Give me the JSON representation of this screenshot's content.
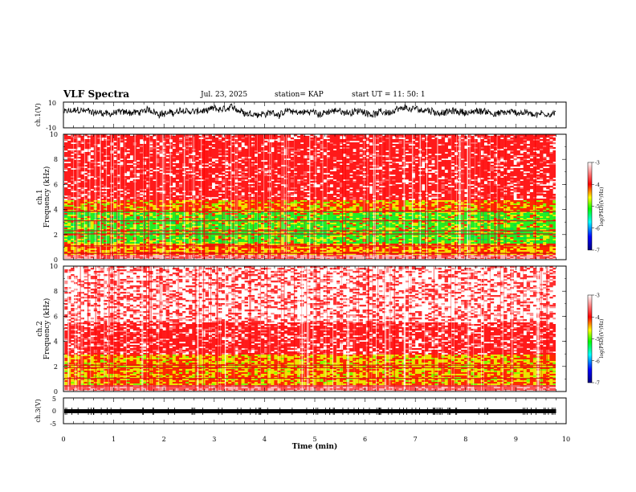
{
  "header": {
    "title": "VLF Spectra",
    "date": "Jul. 23, 2025",
    "station": "station= KAP",
    "start": "start  UT  =   11: 50: 1"
  },
  "chart_data": [
    {
      "type": "line",
      "name": "ch1-waveform",
      "ylabel": "ch.1(V)",
      "ylim": [
        -10,
        10
      ],
      "y_ticklabels": [
        "10",
        "-10"
      ],
      "xlim": [
        0,
        10
      ],
      "data_end_min": 9.8,
      "baseline_v": 2.2,
      "noise_amp_v": 5
    },
    {
      "type": "heatmap",
      "name": "ch1-spectrogram",
      "ylabel": "ch.1\nFrequency (kHz)",
      "ylim": [
        0,
        10
      ],
      "y_ticks": [
        0,
        2,
        4,
        6,
        8,
        10
      ],
      "xlim": [
        0,
        10
      ],
      "data_end_min": 9.8,
      "colorbar": {
        "label": "log(PSD)(V²/Hz)",
        "range": [
          -7,
          -3
        ],
        "ticks": [
          "-3",
          "-4",
          "-5",
          "-6",
          "-7"
        ],
        "colors": [
          "#000080",
          "#0000ff",
          "#00ffff",
          "#00ff00",
          "#ffff00",
          "#ff0000",
          "#ffffff"
        ]
      }
    },
    {
      "type": "heatmap",
      "name": "ch2-spectrogram",
      "ylabel": "ch.2\nFrequency (kHz)",
      "ylim": [
        0,
        10
      ],
      "y_ticks": [
        0,
        2,
        4,
        6,
        8,
        10
      ],
      "xlim": [
        0,
        10
      ],
      "data_end_min": 9.8,
      "colorbar": {
        "label": "log(PSD)(V²/Hz)",
        "range": [
          -7,
          -3
        ],
        "ticks": [
          "-3",
          "-4",
          "-5",
          "-6",
          "-7"
        ],
        "colors": [
          "#000080",
          "#0000ff",
          "#00ffff",
          "#00ff00",
          "#ffff00",
          "#ff0000",
          "#ffffff"
        ]
      }
    },
    {
      "type": "line",
      "name": "ch3-waveform",
      "ylabel": "ch.3(V)",
      "ylim": [
        -5,
        5
      ],
      "y_ticklabels": [
        "5",
        "0",
        "-5"
      ],
      "xlim": [
        0,
        10
      ],
      "data_end_min": 9.8,
      "baseline_v": 0
    }
  ],
  "xaxis": {
    "label": "Time (min)",
    "ticks": [
      "0",
      "1",
      "2",
      "3",
      "4",
      "5",
      "6",
      "7",
      "8",
      "9",
      "10"
    ]
  }
}
